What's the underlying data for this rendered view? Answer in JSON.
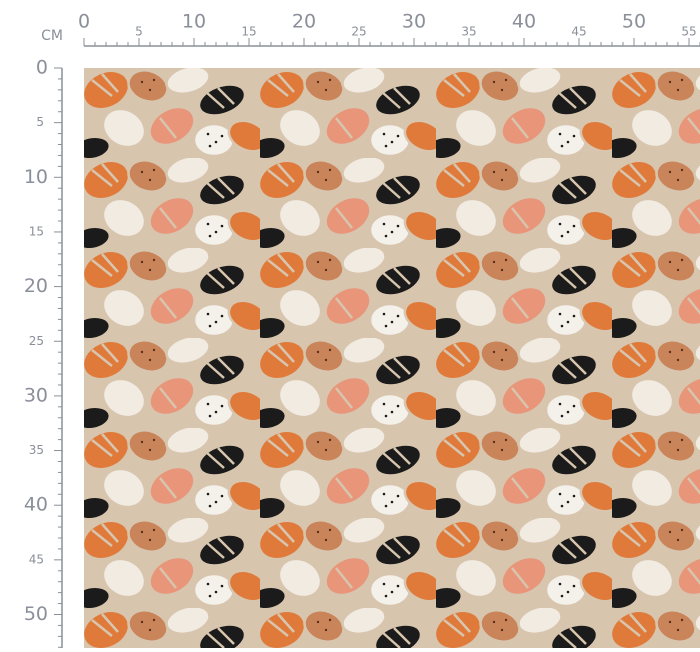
{
  "unit": "CM",
  "top_ruler": {
    "labels": [
      0,
      5,
      10,
      15,
      20,
      25,
      30,
      35,
      40,
      45,
      50,
      55
    ]
  },
  "left_ruler": {
    "labels": [
      0,
      5,
      10,
      15,
      20,
      25,
      30,
      35,
      40,
      45,
      50
    ]
  }
}
